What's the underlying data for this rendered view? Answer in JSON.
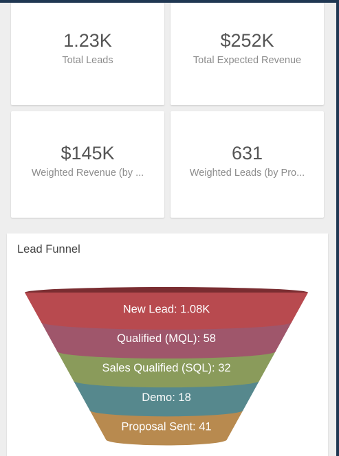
{
  "kpis": [
    {
      "value": "1.23K",
      "label": "Total Leads"
    },
    {
      "value": "$252K",
      "label": "Total Expected Revenue"
    },
    {
      "value": "$145K",
      "label": "Weighted Revenue (by ..."
    },
    {
      "value": "631",
      "label": "Weighted Leads (by Pro..."
    }
  ],
  "funnel": {
    "title": "Lead Funnel",
    "stages": [
      {
        "label": "New Lead: 1.08K",
        "name": "New Lead",
        "value": 1080,
        "color": "#b84a4f"
      },
      {
        "label": "Qualified (MQL): 58",
        "name": "Qualified (MQL)",
        "value": 58,
        "color": "#9f566b"
      },
      {
        "label": "Sales Qualified (SQL): 32",
        "name": "Sales Qualified (SQL)",
        "value": 32,
        "color": "#8a9b5b"
      },
      {
        "label": "Demo: 18",
        "name": "Demo",
        "value": 18,
        "color": "#56888d"
      },
      {
        "label": "Proposal Sent: 41",
        "name": "Proposal Sent",
        "value": 41,
        "color": "#b88a4f"
      }
    ],
    "top_color": "#7a2d31"
  }
}
